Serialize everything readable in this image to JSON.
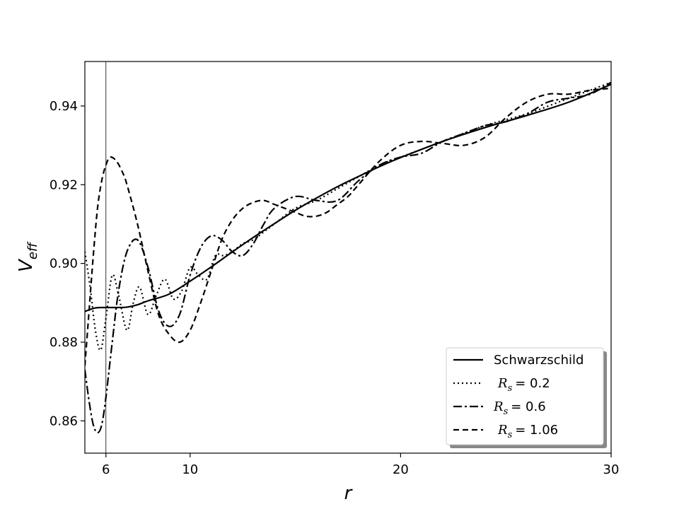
{
  "chart_data": {
    "type": "line",
    "xlabel": "r",
    "ylabel_main": "V",
    "ylabel_sub": "eff",
    "xlim": [
      5,
      30
    ],
    "ylim": [
      0.8518,
      0.9513
    ],
    "xticks": [
      6,
      10,
      20,
      30
    ],
    "yticks": [
      0.86,
      0.88,
      0.9,
      0.92,
      0.94
    ],
    "ytick_labels": [
      "0.86",
      "0.88",
      "0.90",
      "0.92",
      "0.94"
    ],
    "vline_x": 6,
    "legend_position": "lower-right",
    "series": [
      {
        "name": "Schwarzschild",
        "style": "solid",
        "color": "#000000",
        "x": [
          5.0,
          5.5,
          6.0,
          6.5,
          7.0,
          7.5,
          8.0,
          9.0,
          10.0,
          11.0,
          12.0,
          13.0,
          14.0,
          15.0,
          16.0,
          17.0,
          18.0,
          19.0,
          20.0,
          22.0,
          24.0,
          26.0,
          28.0,
          30.0
        ],
        "y": [
          0.8878,
          0.8887,
          0.8888,
          0.8888,
          0.8889,
          0.8895,
          0.8905,
          0.8922,
          0.8955,
          0.8991,
          0.9029,
          0.9066,
          0.9101,
          0.9135,
          0.9166,
          0.9195,
          0.9221,
          0.9246,
          0.9269,
          0.931,
          0.9345,
          0.9376,
          0.941,
          0.9455
        ]
      },
      {
        "name": "R_s = 0.2",
        "label_main": "R",
        "label_sub": "s",
        "label_value": "= 0.2",
        "style": "dotted",
        "color": "#000000",
        "x": [
          5.0,
          5.25,
          5.5,
          5.75,
          6.0,
          6.3,
          6.6,
          7.0,
          7.3,
          7.6,
          8.0,
          8.4,
          8.8,
          9.2,
          9.6,
          10.0,
          10.4,
          10.8,
          11.2,
          11.6,
          12.0,
          12.5,
          13.0,
          13.5,
          14.0,
          15.0,
          16.0,
          17.0,
          18.0,
          19.0,
          20.0,
          22.0,
          24.0,
          26.0,
          28.0,
          30.0
        ],
        "y": [
          0.903,
          0.894,
          0.883,
          0.878,
          0.886,
          0.897,
          0.892,
          0.883,
          0.89,
          0.894,
          0.887,
          0.892,
          0.896,
          0.891,
          0.893,
          0.899,
          0.897,
          0.896,
          0.902,
          0.902,
          0.903,
          0.905,
          0.906,
          0.908,
          0.91,
          0.914,
          0.916,
          0.919,
          0.922,
          0.925,
          0.927,
          0.931,
          0.935,
          0.938,
          0.942,
          0.946
        ]
      },
      {
        "name": "R_s = 0.6",
        "label_main": "R",
        "label_sub": "s",
        "label_value": "= 0.6",
        "style": "dashdot",
        "color": "#000000",
        "x": [
          5.0,
          5.2,
          5.4,
          5.6,
          5.8,
          6.0,
          6.3,
          6.6,
          7.0,
          7.5,
          8.0,
          8.5,
          9.0,
          9.5,
          10.0,
          10.5,
          11.0,
          11.5,
          12.0,
          12.5,
          13.0,
          13.5,
          14.0,
          15.0,
          16.0,
          17.0,
          18.0,
          19.0,
          20.0,
          21.0,
          22.0,
          23.0,
          24.0,
          25.0,
          26.0,
          27.0,
          28.0,
          29.0,
          30.0
        ],
        "y": [
          0.873,
          0.865,
          0.859,
          0.857,
          0.859,
          0.866,
          0.88,
          0.893,
          0.903,
          0.906,
          0.899,
          0.888,
          0.884,
          0.887,
          0.897,
          0.904,
          0.907,
          0.906,
          0.903,
          0.902,
          0.905,
          0.91,
          0.914,
          0.917,
          0.916,
          0.916,
          0.921,
          0.925,
          0.927,
          0.928,
          0.931,
          0.933,
          0.935,
          0.936,
          0.938,
          0.941,
          0.942,
          0.943,
          0.946
        ]
      },
      {
        "name": "R_s = 1.06",
        "label_main": "R",
        "label_sub": "s",
        "label_value": "= 1.06",
        "style": "dashed",
        "color": "#000000",
        "x": [
          5.0,
          5.2,
          5.4,
          5.6,
          5.8,
          6.0,
          6.2,
          6.5,
          6.8,
          7.0,
          7.5,
          8.0,
          8.5,
          9.0,
          9.5,
          10.0,
          10.5,
          11.0,
          11.5,
          12.0,
          12.5,
          13.0,
          13.5,
          14.0,
          14.5,
          15.0,
          15.5,
          16.0,
          16.5,
          17.0,
          17.5,
          18.0,
          19.0,
          20.0,
          21.0,
          22.0,
          23.0,
          24.0,
          25.0,
          26.0,
          27.0,
          28.0,
          29.0,
          30.0
        ],
        "y": [
          0.874,
          0.888,
          0.902,
          0.914,
          0.921,
          0.925,
          0.927,
          0.926,
          0.923,
          0.92,
          0.91,
          0.898,
          0.887,
          0.882,
          0.88,
          0.883,
          0.89,
          0.898,
          0.906,
          0.911,
          0.914,
          0.9155,
          0.916,
          0.915,
          0.914,
          0.913,
          0.912,
          0.912,
          0.913,
          0.915,
          0.917,
          0.92,
          0.926,
          0.93,
          0.931,
          0.9305,
          0.93,
          0.932,
          0.937,
          0.941,
          0.943,
          0.943,
          0.944,
          0.9445
        ]
      }
    ]
  }
}
